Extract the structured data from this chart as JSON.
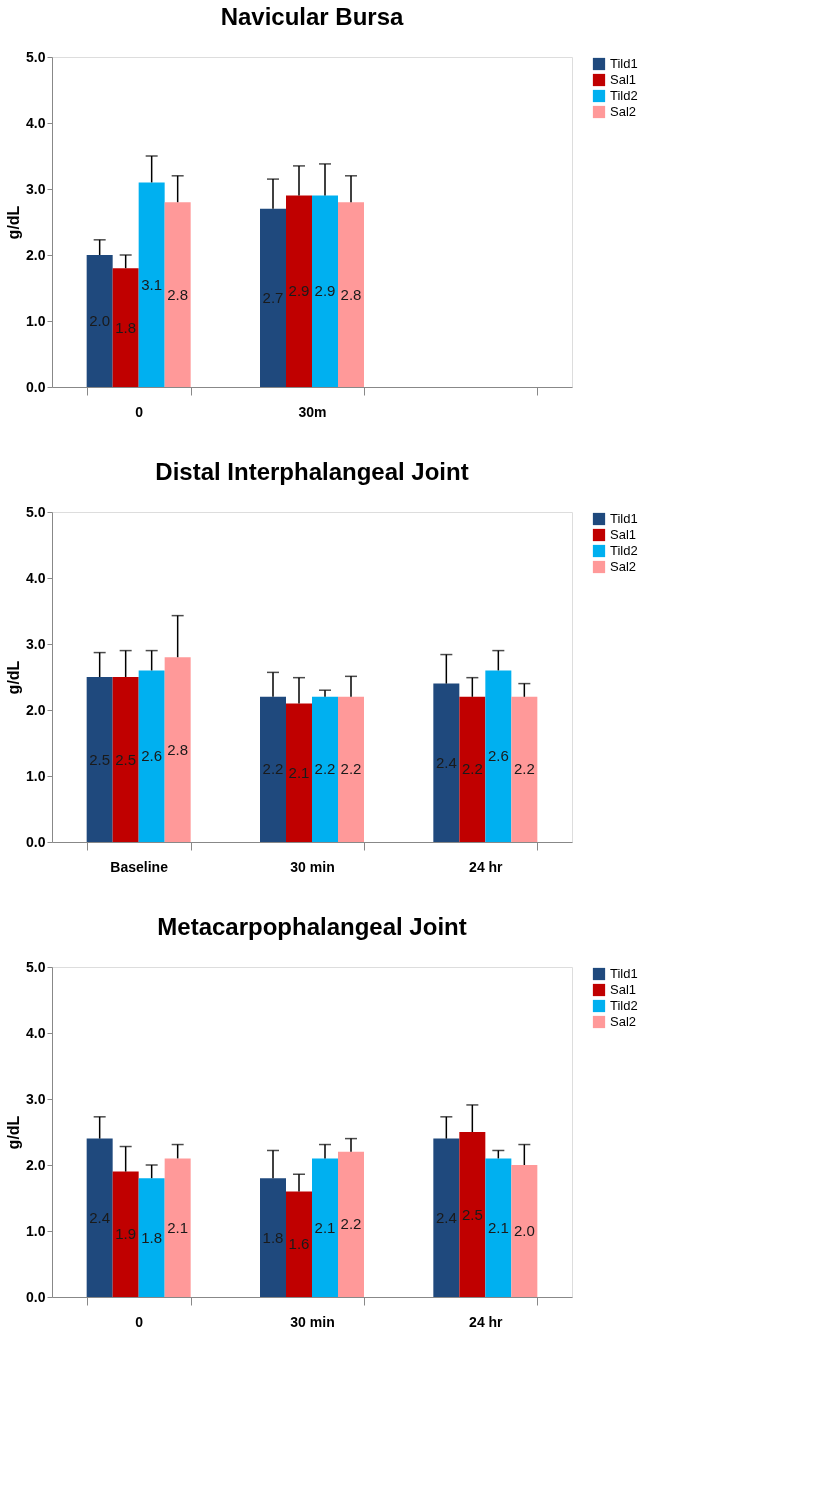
{
  "chart_data": [
    {
      "type": "bar",
      "title": "Navicular Bursa",
      "ylabel": "g/dL",
      "categories": [
        "0",
        "30m",
        null
      ],
      "ylim": [
        0,
        5
      ],
      "yticks": [
        {
          "value": 0,
          "label": "0.0"
        },
        {
          "value": 1,
          "label": "1.0"
        },
        {
          "value": 2,
          "label": "2.0"
        },
        {
          "value": 3,
          "label": "3.0"
        },
        {
          "value": 4,
          "label": "4.0"
        },
        {
          "value": 5,
          "label": "5.0"
        }
      ],
      "legend": "right",
      "grid": false,
      "series": [
        {
          "name": "Tild1",
          "color": "#1f497d",
          "values": [
            2.0,
            2.7,
            null
          ],
          "value_labels": [
            "2.0",
            "2.7",
            null
          ],
          "errors": [
            [
              2.0,
              2.23
            ],
            [
              2.7,
              3.15
            ],
            null
          ]
        },
        {
          "name": "Sal1",
          "color": "#c00000",
          "values": [
            1.8,
            2.9,
            null
          ],
          "value_labels": [
            "1.8",
            "2.9",
            null
          ],
          "errors": [
            [
              1.8,
              2.0
            ],
            [
              2.9,
              3.35
            ],
            null
          ]
        },
        {
          "name": "Tild2",
          "color": "#00b0f0",
          "values": [
            3.1,
            2.9,
            null
          ],
          "value_labels": [
            "3.1",
            "2.9",
            null
          ],
          "errors": [
            [
              3.1,
              3.5
            ],
            [
              2.9,
              3.38
            ],
            null
          ]
        },
        {
          "name": "Sal2",
          "color": "#ff9999",
          "values": [
            2.8,
            2.8,
            null
          ],
          "value_labels": [
            "2.8",
            "2.8",
            null
          ],
          "errors": [
            [
              2.8,
              3.2
            ],
            [
              2.8,
              3.2
            ],
            null
          ]
        }
      ]
    },
    {
      "type": "bar",
      "title": "Distal Interphalangeal Joint",
      "ylabel": "g/dL",
      "categories": [
        "Baseline",
        "30 min",
        "24 hr"
      ],
      "ylim": [
        0,
        5
      ],
      "yticks": [
        {
          "value": 0,
          "label": "0.0"
        },
        {
          "value": 1,
          "label": "1.0"
        },
        {
          "value": 2,
          "label": "2.0"
        },
        {
          "value": 3,
          "label": "3.0"
        },
        {
          "value": 4,
          "label": "4.0"
        },
        {
          "value": 5,
          "label": "5.0"
        }
      ],
      "legend": "right",
      "grid": false,
      "series": [
        {
          "name": "Tild1",
          "color": "#1f497d",
          "values": [
            2.5,
            2.2,
            2.4
          ],
          "value_labels": [
            "2.5",
            "2.2",
            "2.4"
          ],
          "errors": [
            [
              2.5,
              2.87
            ],
            [
              2.2,
              2.57
            ],
            [
              2.4,
              2.84
            ]
          ]
        },
        {
          "name": "Sal1",
          "color": "#c00000",
          "values": [
            2.5,
            2.1,
            2.2
          ],
          "value_labels": [
            "2.5",
            "2.1",
            "2.2"
          ],
          "errors": [
            [
              2.5,
              2.9
            ],
            [
              2.1,
              2.49
            ],
            [
              2.2,
              2.49
            ]
          ]
        },
        {
          "name": "Tild2",
          "color": "#00b0f0",
          "values": [
            2.6,
            2.2,
            2.6
          ],
          "value_labels": [
            "2.6",
            "2.2",
            "2.6"
          ],
          "errors": [
            [
              2.6,
              2.9
            ],
            [
              2.2,
              2.3
            ],
            [
              2.6,
              2.9
            ]
          ]
        },
        {
          "name": "Sal2",
          "color": "#ff9999",
          "values": [
            2.8,
            2.2,
            2.2
          ],
          "value_labels": [
            "2.8",
            "2.2",
            "2.2"
          ],
          "errors": [
            [
              2.8,
              3.43
            ],
            [
              2.2,
              2.51
            ],
            [
              2.2,
              2.4
            ]
          ]
        }
      ]
    },
    {
      "type": "bar",
      "title": "Metacarpophalangeal Joint",
      "ylabel": "g/dL",
      "categories": [
        "0",
        "30 min",
        "24 hr"
      ],
      "ylim": [
        0,
        5
      ],
      "yticks": [
        {
          "value": 0,
          "label": "0.0"
        },
        {
          "value": 1,
          "label": "1.0"
        },
        {
          "value": 2,
          "label": "2.0"
        },
        {
          "value": 3,
          "label": "3.0"
        },
        {
          "value": 4,
          "label": "4.0"
        },
        {
          "value": 5,
          "label": "5.0"
        }
      ],
      "legend": "right",
      "grid": false,
      "series": [
        {
          "name": "Tild1",
          "color": "#1f497d",
          "values": [
            2.4,
            1.8,
            2.4
          ],
          "value_labels": [
            "2.4",
            "1.8",
            "2.4"
          ],
          "errors": [
            [
              2.4,
              2.73
            ],
            [
              1.8,
              2.22
            ],
            [
              2.4,
              2.73
            ]
          ]
        },
        {
          "name": "Sal1",
          "color": "#c00000",
          "values": [
            1.9,
            1.6,
            2.5
          ],
          "value_labels": [
            "1.9",
            "1.6",
            "2.5"
          ],
          "errors": [
            [
              1.9,
              2.28
            ],
            [
              1.6,
              1.86
            ],
            [
              2.5,
              2.91
            ]
          ]
        },
        {
          "name": "Tild2",
          "color": "#00b0f0",
          "values": [
            1.8,
            2.1,
            2.1
          ],
          "value_labels": [
            "1.8",
            "2.1",
            "2.1"
          ],
          "errors": [
            [
              1.8,
              2.0
            ],
            [
              2.1,
              2.31
            ],
            [
              2.1,
              2.22
            ]
          ]
        },
        {
          "name": "Sal2",
          "color": "#ff9999",
          "values": [
            2.1,
            2.2,
            2.0
          ],
          "value_labels": [
            "2.1",
            "2.2",
            "2.0"
          ],
          "errors": [
            [
              2.1,
              2.31
            ],
            [
              2.2,
              2.4
            ],
            [
              2.0,
              2.31
            ]
          ]
        }
      ]
    }
  ]
}
